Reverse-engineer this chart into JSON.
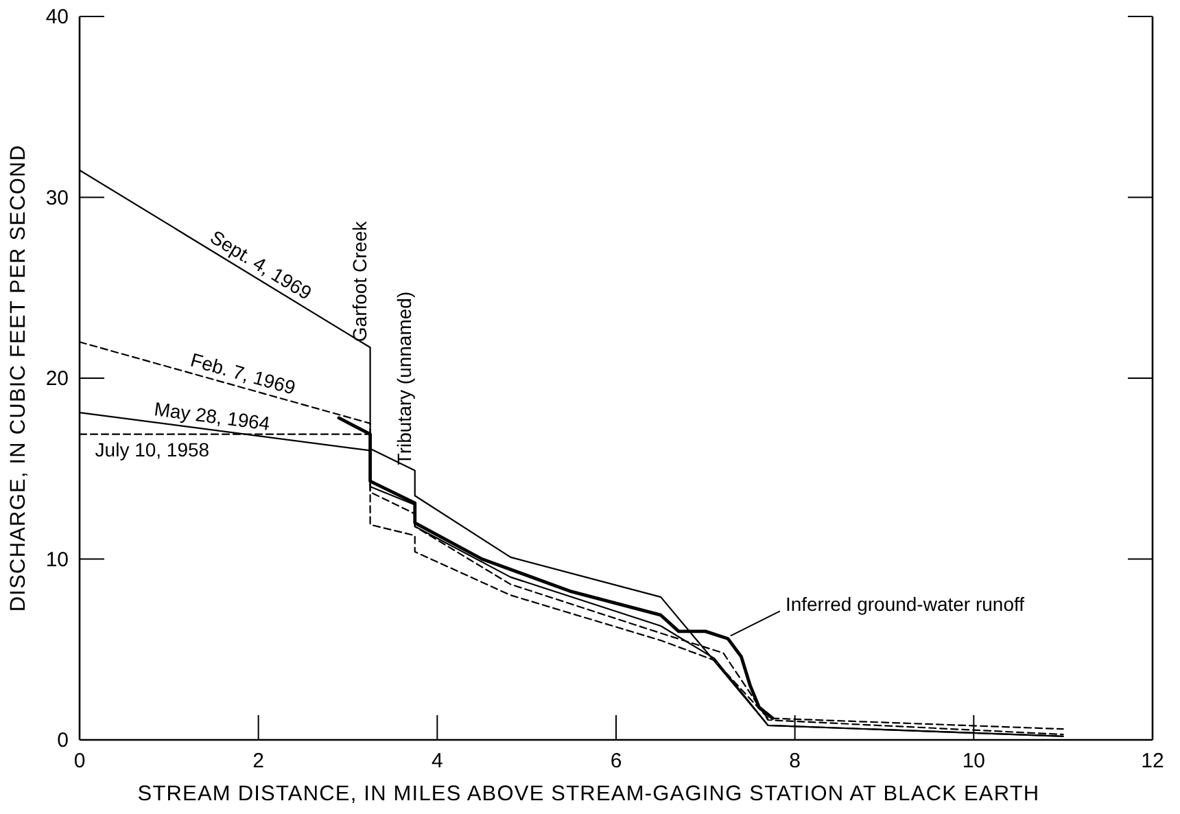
{
  "chart_data": {
    "type": "line",
    "xlabel": "STREAM DISTANCE, IN MILES ABOVE STREAM-GAGING STATION AT BLACK EARTH",
    "ylabel": "DISCHARGE, IN CUBIC FEET PER SECOND",
    "xlim": [
      0,
      12
    ],
    "ylim": [
      0,
      40
    ],
    "xticks": [
      0,
      2,
      4,
      6,
      8,
      10,
      12
    ],
    "yticks": [
      0,
      10,
      20,
      30,
      40
    ],
    "grid": false,
    "marker": "none",
    "series": [
      {
        "name": "Sept. 4, 1969",
        "color": "#000000",
        "line_style": "solid",
        "x": [
          0,
          3.25,
          3.25,
          3.75,
          3.75,
          4.82,
          6.5,
          7.7,
          11
        ],
        "values": [
          31.5,
          21.7,
          16.1,
          14.9,
          13.5,
          10.1,
          7.9,
          0.8,
          0.2
        ]
      },
      {
        "name": "Feb. 7, 1969",
        "color": "#000000",
        "line_style": "dashed",
        "x": [
          0,
          3.25,
          3.25,
          3.75,
          3.75,
          4.82,
          6.5,
          7.2,
          7.7,
          11
        ],
        "values": [
          22,
          17.5,
          13.7,
          12.5,
          11.8,
          8.6,
          5.9,
          4.8,
          1.1,
          0.3
        ]
      },
      {
        "name": "May 28, 1964",
        "color": "#000000",
        "line_style": "solid",
        "x": [
          0,
          3.25,
          3.25,
          3.75,
          3.75,
          4.82,
          6.5,
          7.1,
          7.7,
          11
        ],
        "values": [
          18.1,
          16,
          14,
          13,
          11.8,
          9,
          6.3,
          4.5,
          0.8,
          0.2
        ]
      },
      {
        "name": "July 10, 1958",
        "color": "#000000",
        "line_style": "dashed",
        "x": [
          0,
          3.25,
          3.25,
          3.75,
          3.75,
          4.82,
          6.5,
          7.1,
          7.7,
          11
        ],
        "values": [
          16.9,
          16.9,
          11.9,
          11.3,
          10.4,
          8,
          5.5,
          4.4,
          1.2,
          0.6
        ]
      },
      {
        "name": "Inferred ground-water runoff",
        "color": "#000000",
        "line_style": "solid",
        "x": [
          2.9,
          3.25,
          3.25,
          3.75,
          3.75,
          4.5,
          5.5,
          6.5,
          6.7,
          7,
          7.25,
          7.4,
          7.5,
          7.6,
          7.75
        ],
        "values": [
          17.8,
          16.9,
          14.3,
          13.1,
          12,
          10,
          8.2,
          6.9,
          6,
          6,
          5.6,
          4.6,
          3,
          1.8,
          1.2
        ]
      }
    ],
    "annotations": [
      {
        "text": "Garfoot Creek",
        "x": 3.25,
        "y": 21.7
      },
      {
        "text": "Tributary (unnamed)",
        "x": 3.75,
        "y": 14.9
      }
    ]
  }
}
